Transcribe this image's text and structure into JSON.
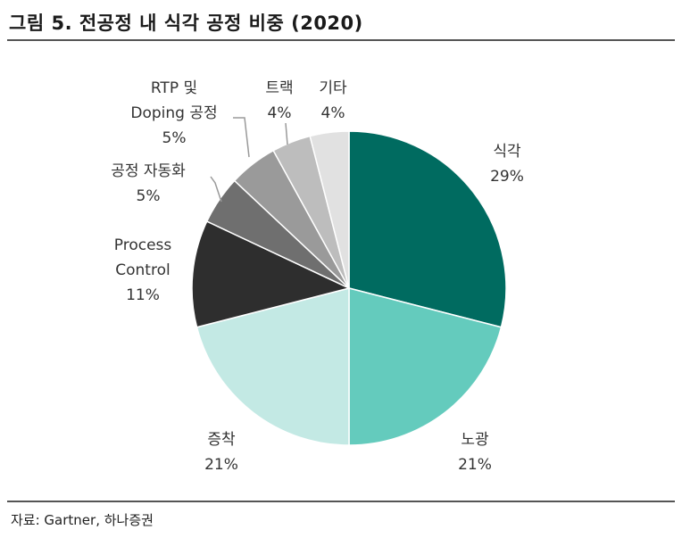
{
  "title": "그림 5. 전공정 내 식각 공정 비중 (2020)",
  "source": "자료: Gartner, 하나증권",
  "chart_data": {
    "type": "pie",
    "start_angle_deg": 0,
    "direction": "clockwise",
    "slices": [
      {
        "label_lines": [
          "식각"
        ],
        "value": 29,
        "value_label": "29%",
        "color": "#006b60"
      },
      {
        "label_lines": [
          "노광"
        ],
        "value": 21,
        "value_label": "21%",
        "color": "#64cbbd"
      },
      {
        "label_lines": [
          "증착"
        ],
        "value": 21,
        "value_label": "21%",
        "color": "#c3e9e4"
      },
      {
        "label_lines": [
          "Process",
          "Control"
        ],
        "value": 11,
        "value_label": "11%",
        "color": "#2e2e2e"
      },
      {
        "label_lines": [
          "공정 자동화"
        ],
        "value": 5,
        "value_label": "5%",
        "color": "#6f6f6f"
      },
      {
        "label_lines": [
          "RTP 및",
          "Doping 공정"
        ],
        "value": 5,
        "value_label": "5%",
        "color": "#9a9a9a"
      },
      {
        "label_lines": [
          "트랙"
        ],
        "value": 4,
        "value_label": "4%",
        "color": "#bdbdbd"
      },
      {
        "label_lines": [
          "기타"
        ],
        "value": 4,
        "value_label": "4%",
        "color": "#e1e1e1"
      }
    ]
  }
}
